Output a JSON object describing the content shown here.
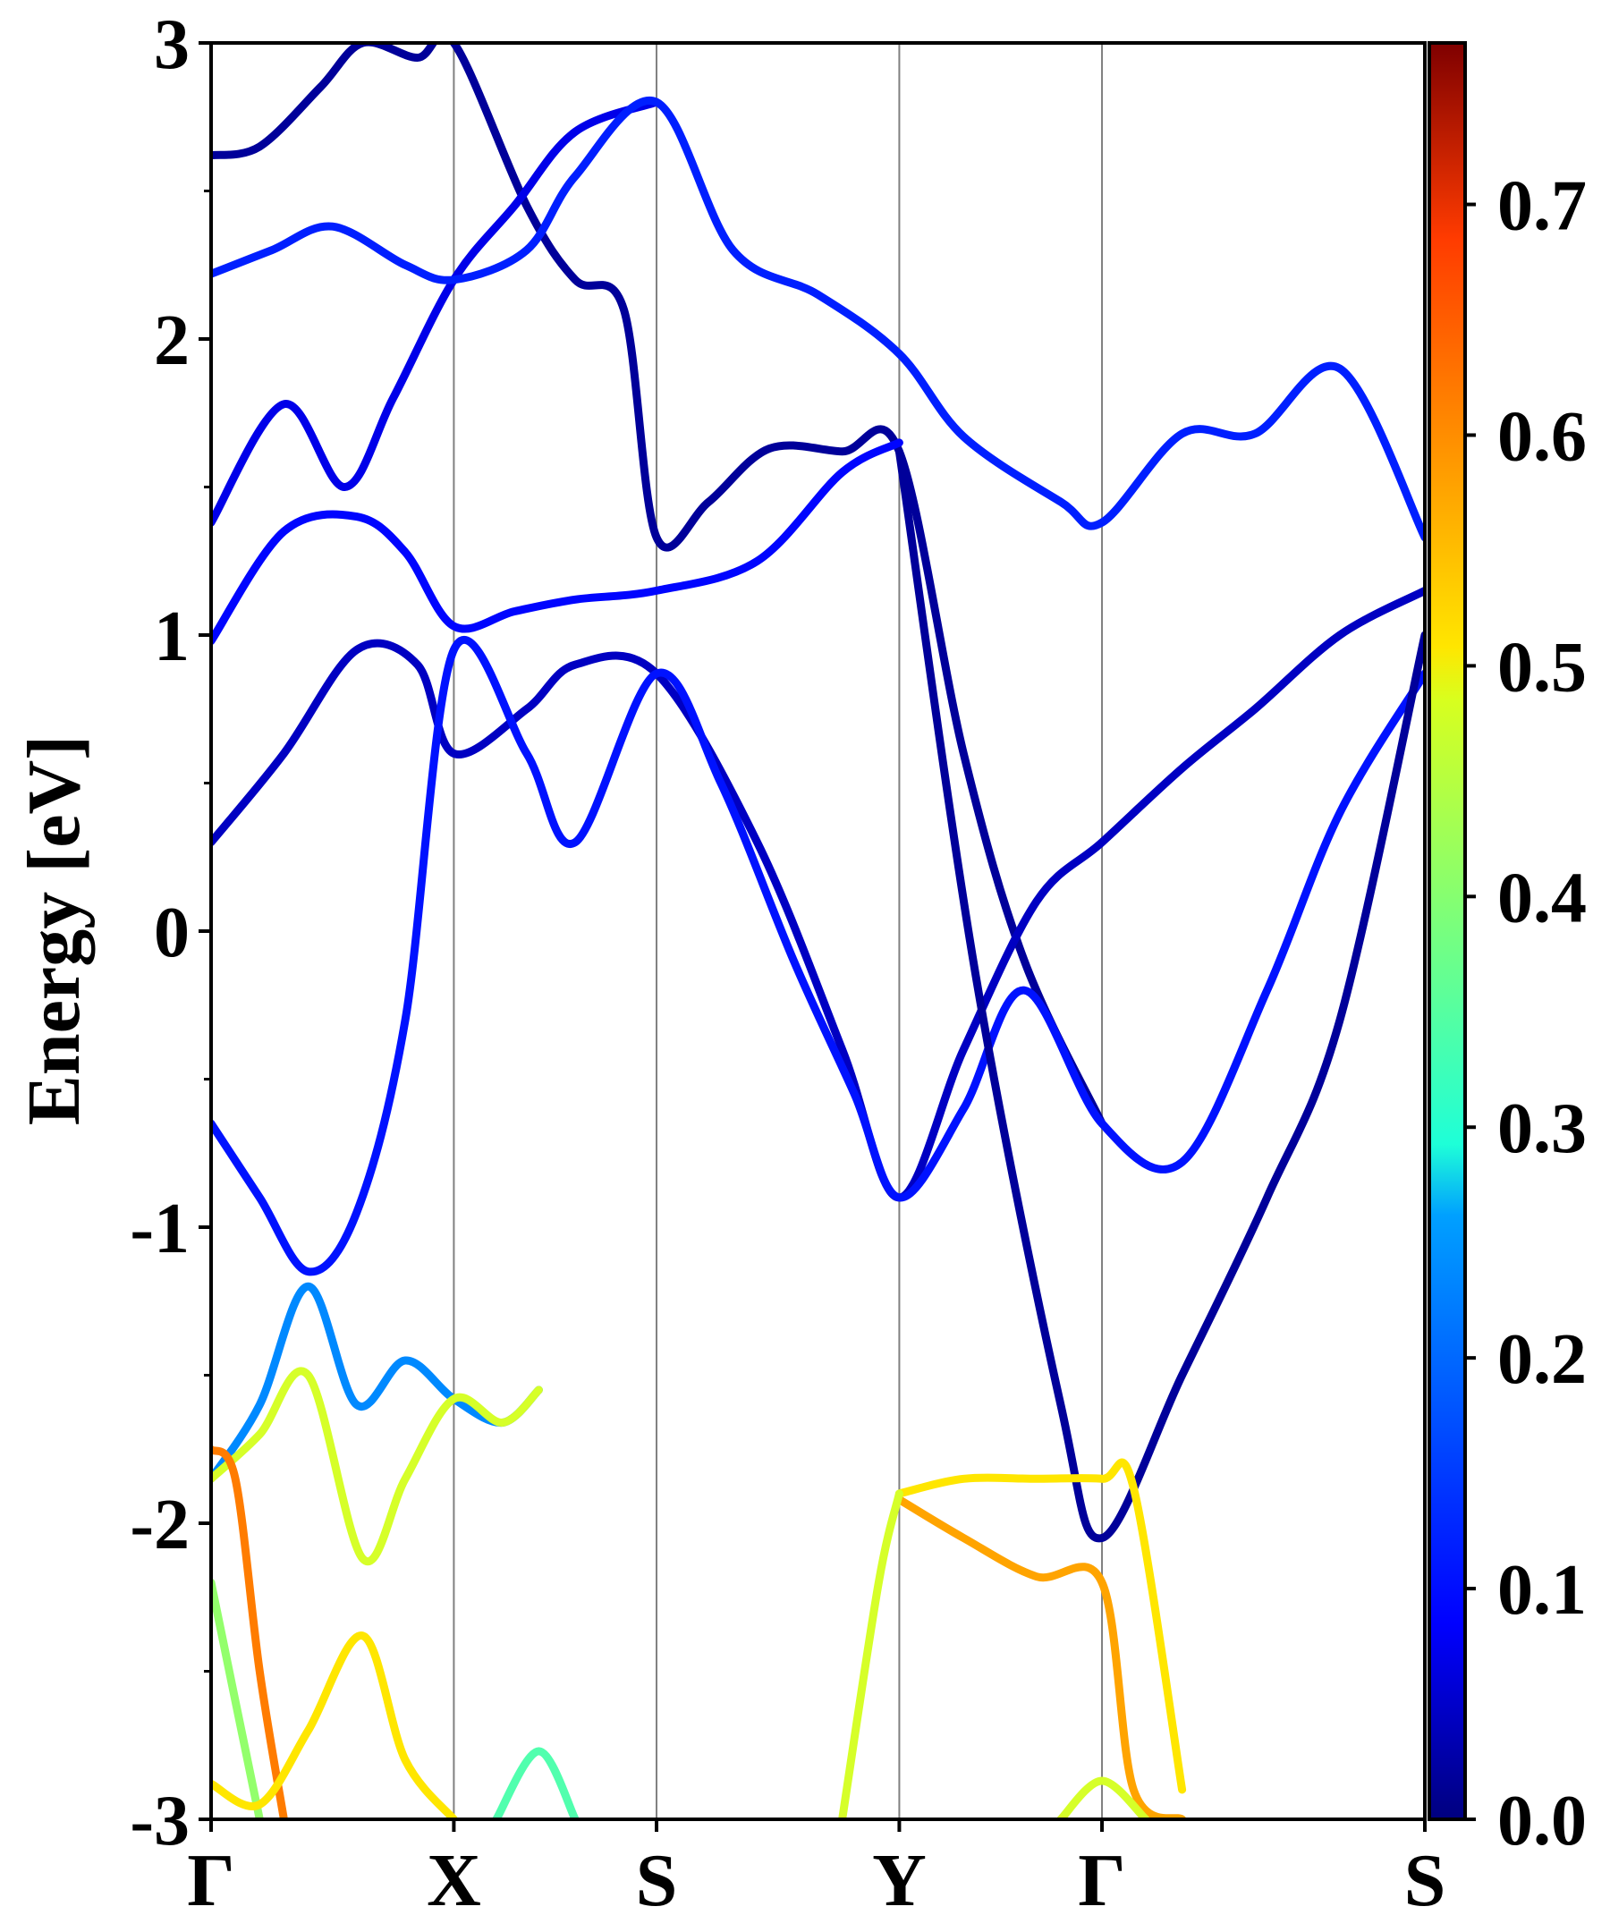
{
  "chart_data": {
    "type": "line",
    "title": "",
    "xlabel": "",
    "ylabel": "Energy [eV]",
    "ylim": [
      -3,
      3
    ],
    "yticks": [
      "3",
      "2",
      "1",
      "0",
      "-1",
      "-2",
      "-3"
    ],
    "ytick_values": [
      3,
      2,
      1,
      0,
      -1,
      -2,
      -3
    ],
    "kpath_labels": [
      "Γ",
      "X",
      "S",
      "Y",
      "Γ",
      "S"
    ],
    "kpath_positions": [
      0,
      0.2,
      0.367,
      0.567,
      0.734,
      1.0
    ],
    "grid": false,
    "colorbar": {
      "colormap": "jet",
      "min": 0.0,
      "max": 0.77,
      "ticks": [
        "0.7",
        "0.6",
        "0.5",
        "0.4",
        "0.3",
        "0.2",
        "0.1",
        "0.0"
      ],
      "tick_values": [
        0.7,
        0.6,
        0.5,
        0.4,
        0.3,
        0.2,
        0.1,
        0.0
      ]
    },
    "series": [
      {
        "color_value": 0.02,
        "x": [
          0,
          0.04,
          0.09,
          0.125,
          0.17,
          0.2,
          0.26,
          0.3,
          0.34,
          0.367,
          0.41,
          0.46,
          0.52,
          0.567,
          0.62,
          0.67,
          0.734
        ],
        "y": [
          2.62,
          2.65,
          2.85,
          3.0,
          2.95,
          3.0,
          2.45,
          2.2,
          2.1,
          1.33,
          1.45,
          1.63,
          1.62,
          1.62,
          0.6,
          -0.1,
          -0.65
        ]
      },
      {
        "color_value": 0.08,
        "x": [
          0,
          0.06,
          0.11,
          0.15,
          0.2,
          0.25,
          0.3,
          0.367
        ],
        "y": [
          1.38,
          1.78,
          1.5,
          1.8,
          2.2,
          2.45,
          2.7,
          2.8
        ]
      },
      {
        "color_value": 0.12,
        "x": [
          0,
          0.05,
          0.1,
          0.16,
          0.2,
          0.26,
          0.3,
          0.367,
          0.43,
          0.5,
          0.567,
          0.62,
          0.7,
          0.734,
          0.8,
          0.86,
          0.93,
          1.0
        ],
        "y": [
          2.22,
          2.3,
          2.38,
          2.25,
          2.2,
          2.3,
          2.55,
          2.8,
          2.3,
          2.15,
          1.95,
          1.67,
          1.45,
          1.38,
          1.68,
          1.68,
          1.9,
          1.33
        ]
      },
      {
        "color_value": 0.1,
        "x": [
          0,
          0.06,
          0.12,
          0.16,
          0.2,
          0.25,
          0.3,
          0.367,
          0.45,
          0.52,
          0.567
        ],
        "y": [
          0.98,
          1.35,
          1.4,
          1.28,
          1.03,
          1.08,
          1.12,
          1.15,
          1.25,
          1.55,
          1.65
        ]
      },
      {
        "color_value": 0.05,
        "x": [
          0,
          0.06,
          0.12,
          0.17,
          0.2,
          0.26,
          0.3,
          0.367,
          0.45,
          0.52,
          0.567,
          0.62,
          0.68,
          0.734,
          0.8,
          0.86,
          0.93,
          1.0
        ],
        "y": [
          0.3,
          0.6,
          0.95,
          0.9,
          0.6,
          0.75,
          0.9,
          0.87,
          0.3,
          -0.4,
          -0.9,
          -0.4,
          0.1,
          0.3,
          0.55,
          0.75,
          1.0,
          1.15
        ]
      },
      {
        "color_value": 0.11,
        "x": [
          0,
          0.04,
          0.08,
          0.12,
          0.16,
          0.2,
          0.26,
          0.3,
          0.367,
          0.42,
          0.48,
          0.53,
          0.567,
          0.62,
          0.67,
          0.734,
          0.8,
          0.87,
          0.93,
          1.0
        ],
        "y": [
          -0.65,
          -0.9,
          -1.15,
          -0.95,
          -0.3,
          0.95,
          0.6,
          0.3,
          0.87,
          0.5,
          -0.1,
          -0.55,
          -0.9,
          -0.6,
          -0.2,
          -0.65,
          -0.78,
          -0.2,
          0.4,
          0.87
        ]
      },
      {
        "color_value": 0.2,
        "x": [
          0,
          0.04,
          0.08,
          0.12,
          0.16,
          0.2,
          0.24,
          0.27
        ],
        "y": [
          -1.85,
          -1.6,
          -1.2,
          -1.6,
          -1.45,
          -1.58,
          -1.66,
          -1.55
        ]
      },
      {
        "color_value": 0.02,
        "x": [
          0.567,
          0.63,
          0.7,
          0.734,
          0.8,
          0.87,
          0.93,
          1.0
        ],
        "y": [
          1.62,
          -0.15,
          -1.6,
          -2.05,
          -1.5,
          -0.9,
          -0.3,
          1.0
        ]
      },
      {
        "color_value": 0.45,
        "x": [
          0,
          0.04,
          0.08,
          0.125,
          0.16,
          0.2,
          0.24,
          0.27
        ],
        "y": [
          -1.85,
          -1.7,
          -1.5,
          -2.12,
          -1.85,
          -1.58,
          -1.66,
          -1.55
        ]
      },
      {
        "color_value": 0.5,
        "x": [
          0.567,
          0.62,
          0.68,
          0.734,
          0.76,
          0.8
        ],
        "y": [
          -1.9,
          -1.85,
          -1.85,
          -1.85,
          -1.88,
          -2.9
        ]
      },
      {
        "color_value": 0.55,
        "x": [
          0.567,
          0.62,
          0.68,
          0.734,
          0.76,
          0.8
        ],
        "y": [
          -1.92,
          -2.05,
          -2.18,
          -2.2,
          -2.9,
          -3.0
        ]
      },
      {
        "color_value": 0.58,
        "x": [
          0,
          0.02,
          0.04,
          0.06
        ],
        "y": [
          -1.75,
          -1.85,
          -2.5,
          -3.0
        ]
      },
      {
        "color_value": 0.4,
        "x": [
          0,
          0.02,
          0.04
        ],
        "y": [
          -2.2,
          -2.6,
          -3.0
        ]
      },
      {
        "color_value": 0.5,
        "x": [
          0,
          0.04,
          0.08,
          0.125,
          0.16,
          0.2
        ],
        "y": [
          -2.88,
          -2.95,
          -2.7,
          -2.38,
          -2.8,
          -3.0
        ]
      },
      {
        "color_value": 0.35,
        "x": [
          0.235,
          0.27,
          0.3
        ],
        "y": [
          -3.0,
          -2.77,
          -3.0
        ]
      },
      {
        "color_value": 0.45,
        "x": [
          0.52,
          0.55,
          0.567
        ],
        "y": [
          -3.0,
          -2.2,
          -1.9
        ]
      },
      {
        "color_value": 0.45,
        "x": [
          0.7,
          0.734,
          0.77
        ],
        "y": [
          -3.0,
          -2.87,
          -3.0
        ]
      }
    ]
  }
}
